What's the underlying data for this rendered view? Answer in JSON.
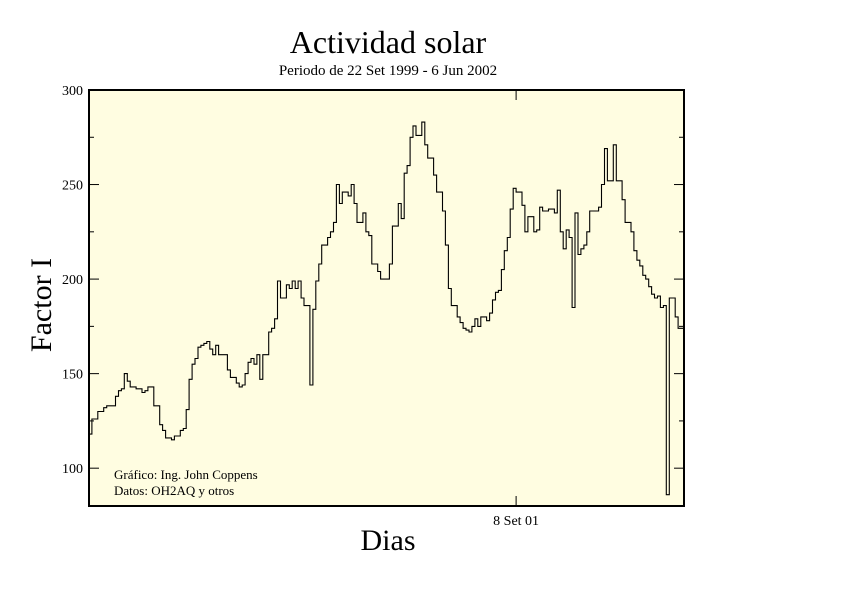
{
  "chart_data": {
    "type": "line",
    "title": "Actividad solar",
    "subtitle": "Periodo de 22 Set 1999 - 6 Jun 2002",
    "xlabel": "Dias",
    "ylabel": "Factor I",
    "ylim": [
      80,
      300
    ],
    "yticks": [
      100,
      150,
      200,
      250,
      300
    ],
    "xtick_labels": [
      {
        "label": "8 Set 01",
        "index": 145
      }
    ],
    "grid": false,
    "background": "#fffde1",
    "line_color": "#000000",
    "annotations": [
      "Gráfico: Ing. John Coppens",
      "Datos: OH2AQ y otros"
    ],
    "series": [
      {
        "values": [
          118,
          126,
          126,
          130,
          130,
          132,
          133,
          133,
          133,
          138,
          141,
          142,
          150,
          146,
          143,
          143,
          142,
          142,
          140,
          141,
          143,
          143,
          133,
          133,
          123,
          120,
          116,
          116,
          115,
          117,
          117,
          120,
          121,
          131,
          147,
          155,
          158,
          164,
          165,
          166,
          167,
          163,
          160,
          165,
          160,
          160,
          160,
          152,
          148,
          148,
          145,
          143,
          144,
          150,
          156,
          158,
          155,
          160,
          147,
          160,
          160,
          172,
          174,
          179,
          199,
          190,
          190,
          197,
          195,
          199,
          195,
          199,
          190,
          186,
          186,
          144,
          184,
          199,
          208,
          218,
          218,
          222,
          225,
          230,
          250,
          240,
          246,
          246,
          244,
          250,
          240,
          230,
          230,
          235,
          225,
          223,
          208,
          208,
          204,
          200,
          200,
          200,
          208,
          228,
          228,
          240,
          232,
          256,
          260,
          275,
          281,
          276,
          276,
          283,
          271,
          264,
          264,
          255,
          246,
          246,
          236,
          218,
          195,
          186,
          186,
          180,
          177,
          174,
          173,
          172,
          175,
          179,
          175,
          180,
          180,
          178,
          182,
          189,
          193,
          194,
          205,
          215,
          222,
          237,
          248,
          246,
          246,
          239,
          225,
          233,
          233,
          225,
          226,
          238,
          236,
          236,
          237,
          237,
          235,
          247,
          225,
          216,
          226,
          222,
          185,
          235,
          213,
          216,
          218,
          225,
          236,
          236,
          236,
          238,
          250,
          269,
          252,
          252,
          271,
          252,
          252,
          242,
          230,
          230,
          225,
          215,
          210,
          207,
          202,
          200,
          196,
          192,
          190,
          191,
          185,
          186,
          86,
          190,
          190,
          180,
          174,
          174
        ]
      }
    ]
  }
}
